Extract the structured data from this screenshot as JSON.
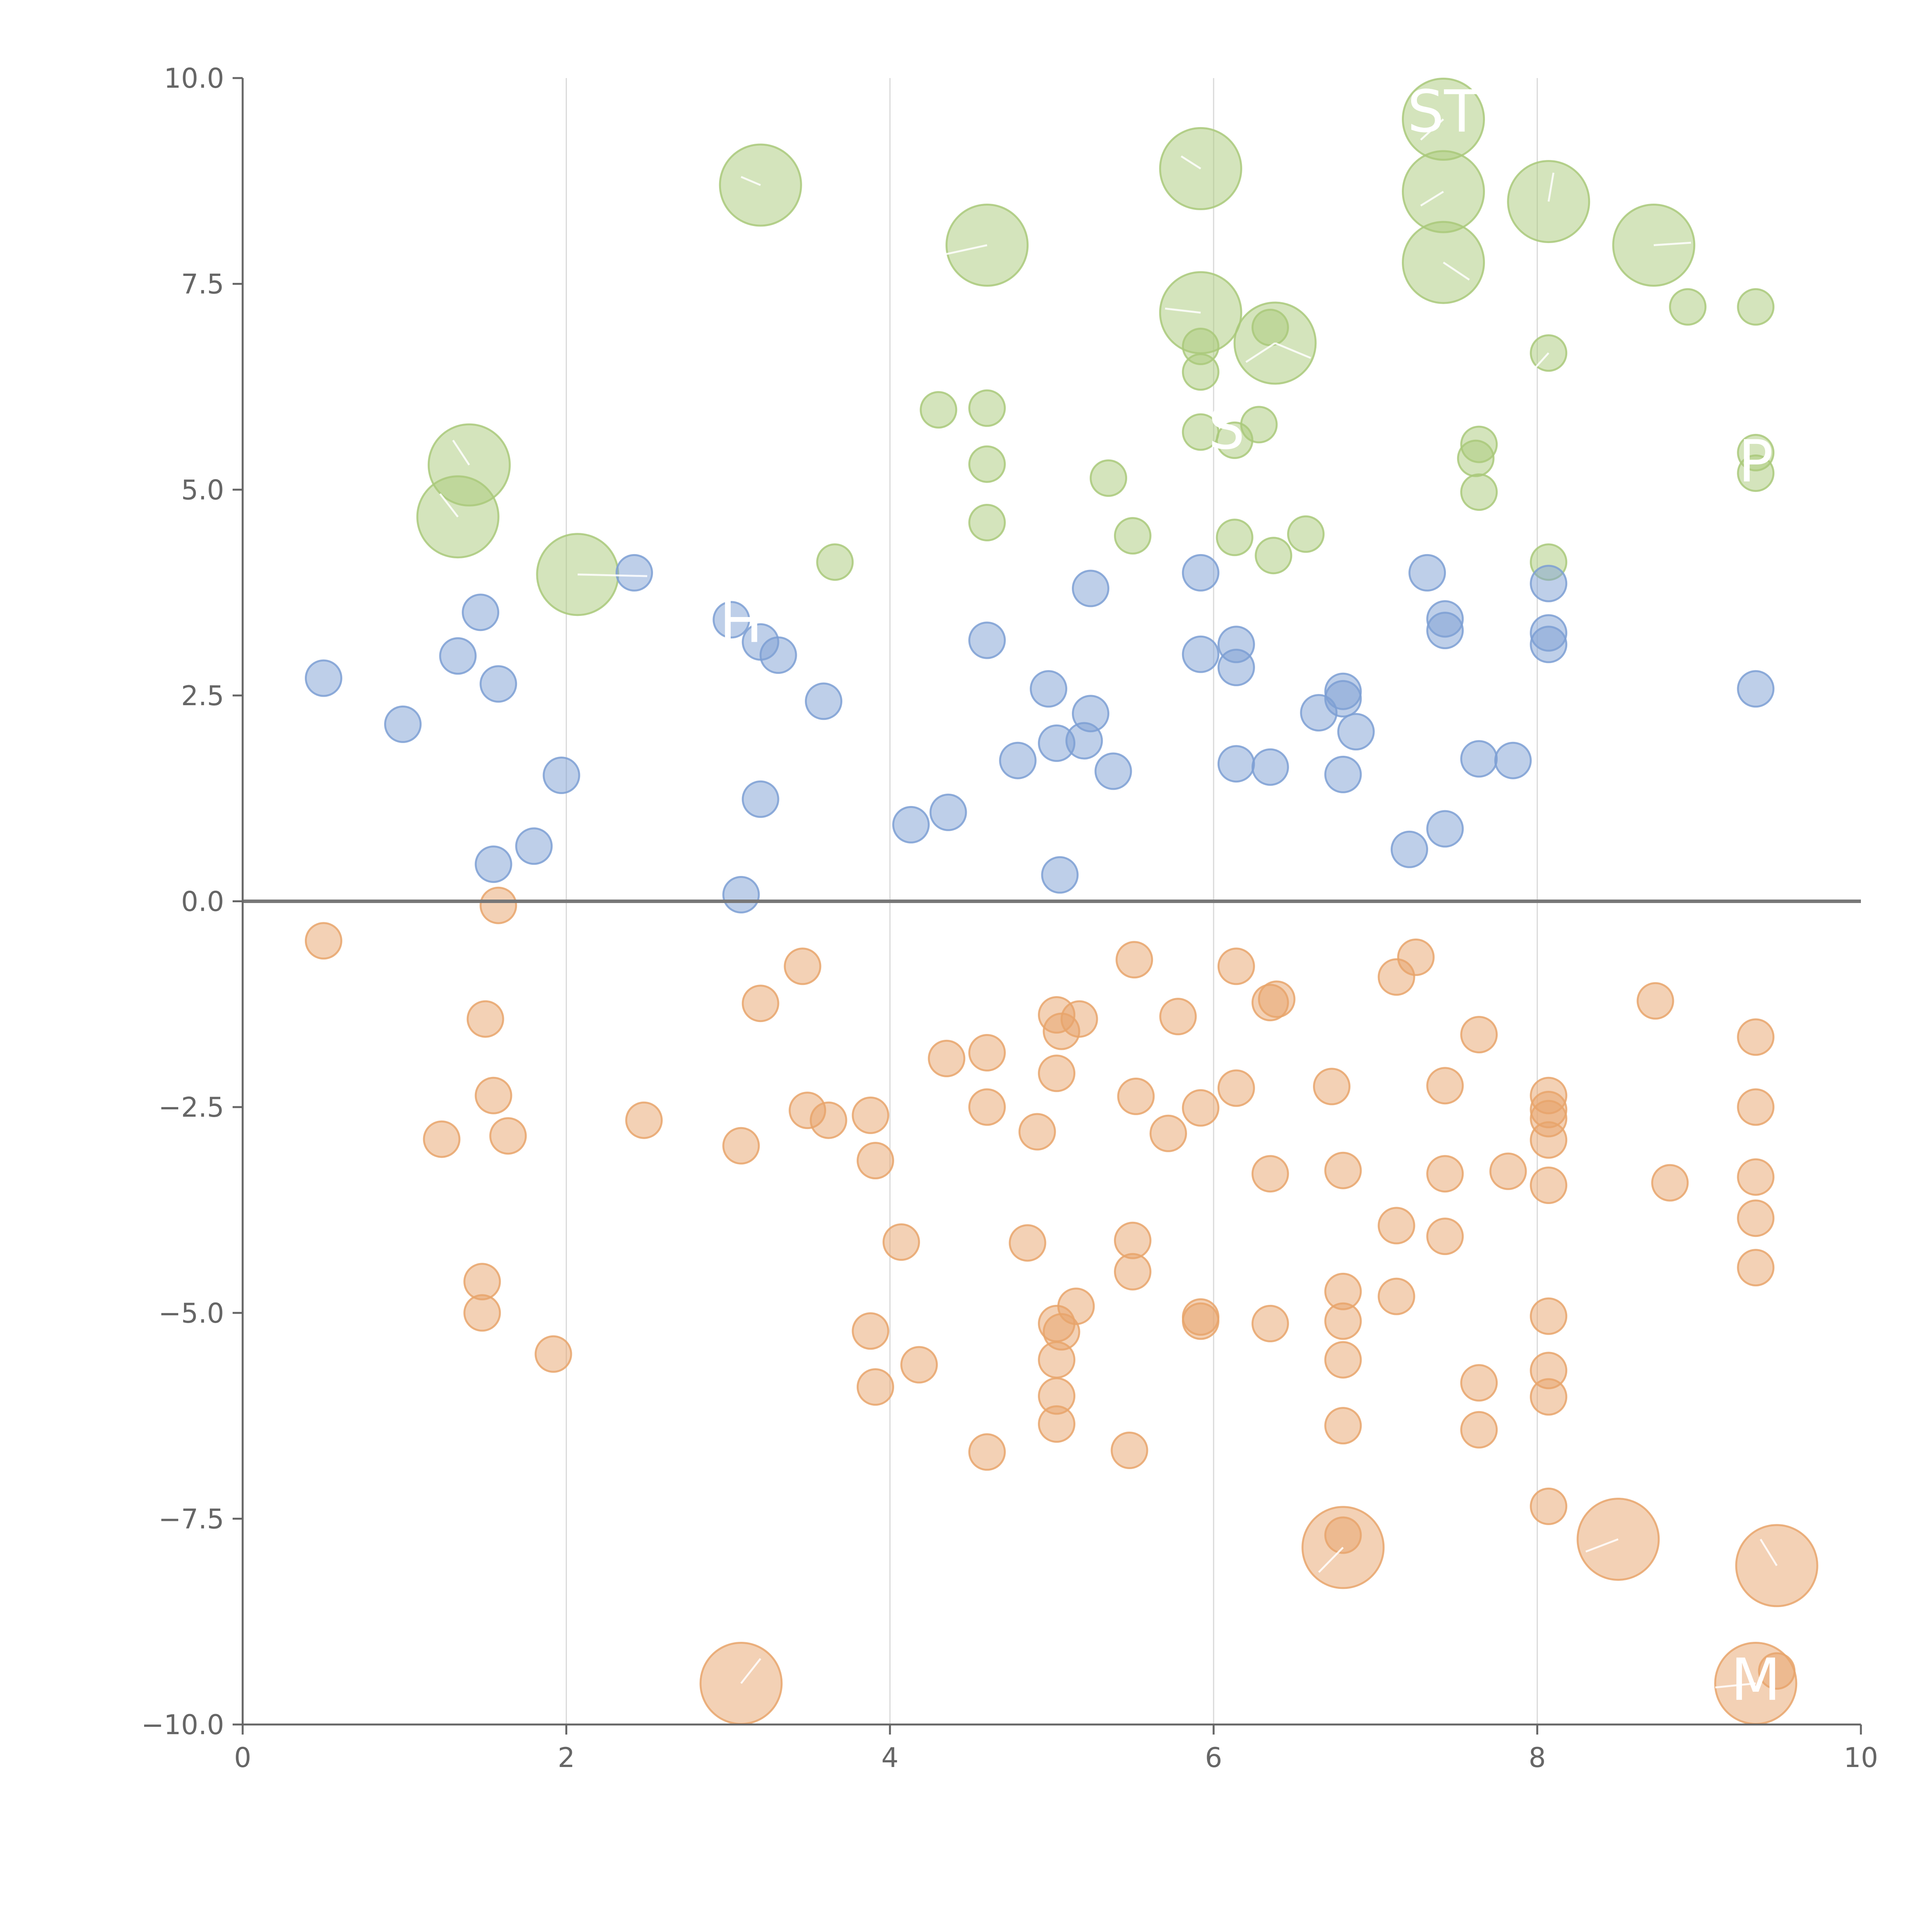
{
  "chart_data": {
    "type": "scatter",
    "title": "",
    "xlabel": "",
    "ylabel": "",
    "xlim": [
      0,
      10
    ],
    "ylim": [
      -10,
      10
    ],
    "x_ticks": [
      0,
      2,
      4,
      6,
      8,
      10
    ],
    "x_tick_labels": [
      "0",
      "2",
      "4",
      "6",
      "8",
      "10"
    ],
    "y_ticks": [
      -10,
      -7.5,
      -5,
      -2.5,
      0,
      2.5,
      5,
      7.5,
      10
    ],
    "y_tick_labels": [
      "−10.0",
      "−7.5",
      "−5.0",
      "−2.5",
      "0.0",
      "2.5",
      "5.0",
      "7.5",
      "10.0"
    ],
    "grid": "vertical",
    "reference_line": {
      "axis": "y",
      "value": 0
    },
    "size_scale": {
      "small": 1,
      "large": 2
    }
  },
  "colors": {
    "green": "#a9c97a",
    "blue": "#7d9fd3",
    "orange": "#e8a46b",
    "label": "#ffffff"
  },
  "series": [
    {
      "name": "green",
      "color_key": "green",
      "points": [
        [
          3.2,
          8.7,
          2
        ],
        [
          4.6,
          7.97,
          2
        ],
        [
          5.92,
          8.9,
          2
        ],
        [
          7.42,
          9.5,
          2
        ],
        [
          7.42,
          8.62,
          2
        ],
        [
          8.07,
          8.5,
          2
        ],
        [
          7.42,
          7.76,
          2
        ],
        [
          8.72,
          7.97,
          2
        ],
        [
          5.92,
          7.15,
          2
        ],
        [
          6.38,
          6.78,
          2
        ],
        [
          1.4,
          5.3,
          2
        ],
        [
          1.33,
          4.67,
          2
        ],
        [
          2.07,
          3.97,
          2
        ],
        [
          8.93,
          7.22,
          1
        ],
        [
          9.35,
          7.22,
          1
        ],
        [
          6.35,
          6.97,
          1
        ],
        [
          5.92,
          6.74,
          1
        ],
        [
          5.92,
          6.43,
          1
        ],
        [
          8.07,
          6.66,
          1
        ],
        [
          4.3,
          5.97,
          1
        ],
        [
          4.6,
          5.99,
          1
        ],
        [
          6.28,
          5.79,
          1
        ],
        [
          5.92,
          5.7,
          1
        ],
        [
          6.13,
          5.6,
          1
        ],
        [
          7.64,
          5.55,
          1
        ],
        [
          7.62,
          5.38,
          1
        ],
        [
          9.35,
          5.45,
          1
        ],
        [
          9.35,
          5.2,
          1
        ],
        [
          4.6,
          5.31,
          1
        ],
        [
          5.35,
          5.14,
          1
        ],
        [
          7.64,
          4.97,
          1
        ],
        [
          4.6,
          4.6,
          1
        ],
        [
          5.5,
          4.44,
          1
        ],
        [
          6.13,
          4.42,
          1
        ],
        [
          6.57,
          4.46,
          1
        ],
        [
          6.37,
          4.2,
          1
        ],
        [
          3.66,
          4.12,
          1
        ],
        [
          8.07,
          4.12,
          1
        ]
      ]
    },
    {
      "name": "blue",
      "color_key": "blue",
      "points": [
        [
          0.5,
          2.71,
          1
        ],
        [
          0.99,
          2.15,
          1
        ],
        [
          1.33,
          2.98,
          1
        ],
        [
          1.47,
          3.51,
          1
        ],
        [
          1.58,
          2.64,
          1
        ],
        [
          1.55,
          0.45,
          1
        ],
        [
          1.8,
          0.67,
          1
        ],
        [
          1.97,
          1.53,
          1
        ],
        [
          2.42,
          3.99,
          1
        ],
        [
          3.02,
          3.42,
          1
        ],
        [
          3.2,
          3.15,
          1
        ],
        [
          3.31,
          2.99,
          1
        ],
        [
          3.59,
          2.43,
          1
        ],
        [
          3.2,
          1.24,
          1
        ],
        [
          3.08,
          0.08,
          1
        ],
        [
          4.13,
          0.93,
          1
        ],
        [
          4.36,
          1.08,
          1
        ],
        [
          4.6,
          3.17,
          1
        ],
        [
          4.79,
          1.71,
          1
        ],
        [
          4.98,
          2.58,
          1
        ],
        [
          5.03,
          1.92,
          1
        ],
        [
          5.05,
          0.32,
          1
        ],
        [
          5.2,
          1.95,
          1
        ],
        [
          5.24,
          2.28,
          1
        ],
        [
          5.24,
          3.8,
          1
        ],
        [
          5.38,
          1.58,
          1
        ],
        [
          5.92,
          3.99,
          1
        ],
        [
          5.92,
          3.0,
          1
        ],
        [
          6.14,
          3.12,
          1
        ],
        [
          6.14,
          2.84,
          1
        ],
        [
          6.14,
          1.67,
          1
        ],
        [
          6.35,
          1.63,
          1
        ],
        [
          6.65,
          2.29,
          1
        ],
        [
          6.8,
          2.55,
          1
        ],
        [
          6.8,
          2.46,
          1
        ],
        [
          6.88,
          2.06,
          1
        ],
        [
          6.8,
          1.54,
          1
        ],
        [
          7.21,
          0.63,
          1
        ],
        [
          7.32,
          3.99,
          1
        ],
        [
          7.43,
          3.43,
          1
        ],
        [
          7.43,
          3.29,
          1
        ],
        [
          7.43,
          0.88,
          1
        ],
        [
          7.64,
          1.73,
          1
        ],
        [
          7.85,
          1.71,
          1
        ],
        [
          8.07,
          3.86,
          1
        ],
        [
          8.07,
          3.26,
          1
        ],
        [
          8.07,
          3.12,
          1
        ],
        [
          9.35,
          2.58,
          1
        ]
      ]
    },
    {
      "name": "orange",
      "color_key": "orange",
      "points": [
        [
          0.5,
          -0.48,
          1
        ],
        [
          1.58,
          -0.05,
          1
        ],
        [
          1.5,
          -1.43,
          1
        ],
        [
          1.55,
          -2.36,
          1
        ],
        [
          1.23,
          -2.89,
          1
        ],
        [
          1.64,
          -2.85,
          1
        ],
        [
          1.48,
          -4.62,
          1
        ],
        [
          1.48,
          -5.0,
          1
        ],
        [
          1.92,
          -5.5,
          1
        ],
        [
          2.48,
          -2.66,
          1
        ],
        [
          3.08,
          -2.97,
          1
        ],
        [
          3.2,
          -1.24,
          1
        ],
        [
          3.46,
          -0.79,
          1
        ],
        [
          3.49,
          -2.54,
          1
        ],
        [
          3.62,
          -2.66,
          1
        ],
        [
          3.88,
          -2.6,
          1
        ],
        [
          3.91,
          -3.15,
          1
        ],
        [
          4.07,
          -4.14,
          1
        ],
        [
          3.88,
          -5.22,
          1
        ],
        [
          3.91,
          -5.9,
          1
        ],
        [
          4.18,
          -5.63,
          1
        ],
        [
          4.35,
          -1.91,
          1
        ],
        [
          4.6,
          -1.84,
          1
        ],
        [
          4.6,
          -2.5,
          1
        ],
        [
          4.85,
          -4.15,
          1
        ],
        [
          4.91,
          -2.8,
          1
        ],
        [
          5.03,
          -1.38,
          1
        ],
        [
          5.06,
          -1.58,
          1
        ],
        [
          5.03,
          -2.09,
          1
        ],
        [
          5.17,
          -1.43,
          1
        ],
        [
          5.03,
          -5.13,
          1
        ],
        [
          5.06,
          -5.23,
          1
        ],
        [
          5.15,
          -4.92,
          1
        ],
        [
          5.03,
          -5.57,
          1
        ],
        [
          5.03,
          -6.01,
          1
        ],
        [
          5.03,
          -6.35,
          1
        ],
        [
          4.6,
          -6.69,
          1
        ],
        [
          5.48,
          -6.67,
          1
        ],
        [
          5.5,
          -4.12,
          1
        ],
        [
          5.5,
          -4.5,
          1
        ],
        [
          5.51,
          -0.71,
          1
        ],
        [
          5.52,
          -2.37,
          1
        ],
        [
          5.72,
          -2.82,
          1
        ],
        [
          5.78,
          -1.4,
          1
        ],
        [
          5.92,
          -2.51,
          1
        ],
        [
          5.92,
          -5.05,
          1
        ],
        [
          5.92,
          -5.1,
          1
        ],
        [
          6.14,
          -0.79,
          1
        ],
        [
          6.14,
          -2.27,
          1
        ],
        [
          6.35,
          -1.23,
          1
        ],
        [
          6.39,
          -1.19,
          1
        ],
        [
          6.35,
          -3.31,
          1
        ],
        [
          6.35,
          -5.13,
          1
        ],
        [
          6.73,
          -2.25,
          1
        ],
        [
          6.8,
          -3.27,
          1
        ],
        [
          6.8,
          -4.74,
          1
        ],
        [
          6.8,
          -5.1,
          1
        ],
        [
          6.8,
          -5.57,
          1
        ],
        [
          6.8,
          -6.37,
          1
        ],
        [
          6.8,
          -7.7,
          1
        ],
        [
          7.13,
          -0.92,
          1
        ],
        [
          7.25,
          -0.68,
          1
        ],
        [
          7.13,
          -3.94,
          1
        ],
        [
          7.13,
          -4.8,
          1
        ],
        [
          7.43,
          -2.24,
          1
        ],
        [
          7.43,
          -3.31,
          1
        ],
        [
          7.43,
          -4.07,
          1
        ],
        [
          7.64,
          -1.62,
          1
        ],
        [
          7.64,
          -5.85,
          1
        ],
        [
          7.64,
          -6.42,
          1
        ],
        [
          7.82,
          -3.28,
          1
        ],
        [
          8.07,
          -2.36,
          1
        ],
        [
          8.07,
          -2.53,
          1
        ],
        [
          8.07,
          -2.64,
          1
        ],
        [
          8.07,
          -2.9,
          1
        ],
        [
          8.07,
          -3.45,
          1
        ],
        [
          8.07,
          -5.04,
          1
        ],
        [
          8.07,
          -5.7,
          1
        ],
        [
          8.07,
          -6.02,
          1
        ],
        [
          8.07,
          -7.35,
          1
        ],
        [
          8.73,
          -1.21,
          1
        ],
        [
          8.82,
          -3.42,
          1
        ],
        [
          9.35,
          -1.65,
          1
        ],
        [
          9.35,
          -2.5,
          1
        ],
        [
          9.35,
          -3.35,
          1
        ],
        [
          9.35,
          -3.85,
          1
        ],
        [
          9.35,
          -4.45,
          1
        ],
        [
          9.48,
          -9.35,
          1
        ],
        [
          6.8,
          -7.85,
          2
        ],
        [
          8.5,
          -7.75,
          2
        ],
        [
          9.48,
          -8.07,
          2
        ],
        [
          3.08,
          -9.5,
          2
        ],
        [
          9.35,
          -9.5,
          2
        ]
      ]
    }
  ],
  "text_labels": [
    {
      "text": "ST",
      "x": 7.42,
      "y": 9.35
    },
    {
      "text": "S",
      "x": 6.08,
      "y": 5.5
    },
    {
      "text": "P",
      "x": 9.35,
      "y": 5.1
    },
    {
      "text": "H",
      "x": 3.08,
      "y": 3.15
    },
    {
      "text": "M",
      "x": 9.35,
      "y": -9.7
    }
  ],
  "leader_lines": [
    {
      "x1": 3.08,
      "y1": 8.8,
      "x2": 3.2,
      "y2": 8.7
    },
    {
      "x1": 4.6,
      "y1": 7.97,
      "x2": 4.32,
      "y2": 7.85
    },
    {
      "x1": 5.92,
      "y1": 8.9,
      "x2": 5.8,
      "y2": 9.05
    },
    {
      "x1": 7.42,
      "y1": 9.5,
      "x2": 7.28,
      "y2": 9.25
    },
    {
      "x1": 7.42,
      "y1": 8.62,
      "x2": 7.28,
      "y2": 8.45
    },
    {
      "x1": 8.07,
      "y1": 8.5,
      "x2": 8.1,
      "y2": 8.85
    },
    {
      "x1": 7.42,
      "y1": 7.76,
      "x2": 7.58,
      "y2": 7.55
    },
    {
      "x1": 8.72,
      "y1": 7.97,
      "x2": 8.95,
      "y2": 8.0
    },
    {
      "x1": 5.92,
      "y1": 7.15,
      "x2": 5.7,
      "y2": 7.2
    },
    {
      "x1": 6.38,
      "y1": 6.78,
      "x2": 6.6,
      "y2": 6.6
    },
    {
      "x1": 6.38,
      "y1": 6.78,
      "x2": 6.2,
      "y2": 6.55
    },
    {
      "x1": 1.4,
      "y1": 5.3,
      "x2": 1.3,
      "y2": 5.6
    },
    {
      "x1": 1.33,
      "y1": 4.67,
      "x2": 1.22,
      "y2": 4.95
    },
    {
      "x1": 2.07,
      "y1": 3.97,
      "x2": 2.5,
      "y2": 3.95
    },
    {
      "x1": 8.07,
      "y1": 6.66,
      "x2": 7.95,
      "y2": 6.4
    },
    {
      "x1": 6.8,
      "y1": -7.85,
      "x2": 6.65,
      "y2": -8.15
    },
    {
      "x1": 8.5,
      "y1": -7.75,
      "x2": 8.3,
      "y2": -7.9
    },
    {
      "x1": 9.48,
      "y1": -8.07,
      "x2": 9.38,
      "y2": -7.75
    },
    {
      "x1": 3.08,
      "y1": -9.5,
      "x2": 3.2,
      "y2": -9.2
    },
    {
      "x1": 9.35,
      "y1": -9.5,
      "x2": 9.1,
      "y2": -9.55
    }
  ]
}
